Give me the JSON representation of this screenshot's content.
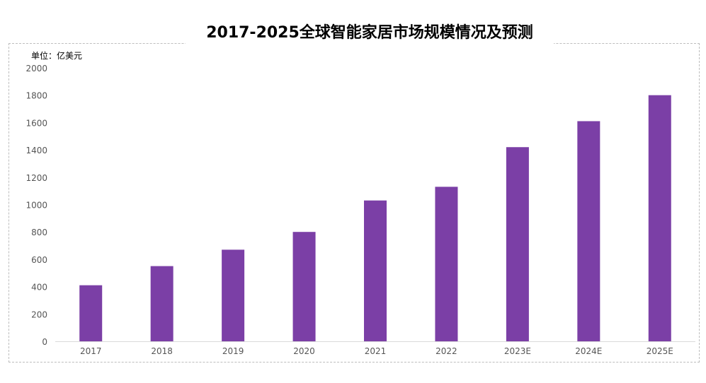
{
  "title": "2017-2025全球智能家居市场规模情况及预测",
  "unit_label": "单位：亿美元",
  "colors": {
    "bar": "#7b3fa6",
    "axis": "#d9d9d9",
    "tick_text": "#555555"
  },
  "chart_data": {
    "type": "bar",
    "title": "2017-2025全球智能家居市场规模情况及预测",
    "ylabel": "单位：亿美元",
    "xlabel": "",
    "categories": [
      "2017",
      "2018",
      "2019",
      "2020",
      "2021",
      "2022",
      "2023E",
      "2024E",
      "2025E"
    ],
    "values": [
      410,
      550,
      670,
      800,
      1030,
      1130,
      1420,
      1610,
      1800
    ],
    "ylim": [
      0,
      2000
    ],
    "yticks": [
      0,
      200,
      400,
      600,
      800,
      1000,
      1200,
      1400,
      1600,
      1800,
      2000
    ],
    "grid": false,
    "legend": "none"
  }
}
